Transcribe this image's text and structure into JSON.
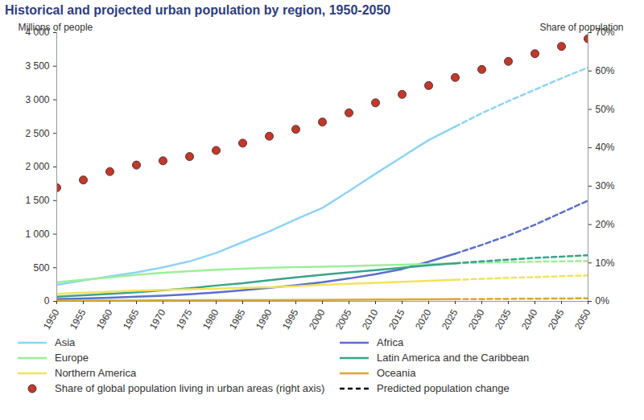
{
  "chart_data": {
    "type": "line",
    "title": "Historical and projected urban population by region, 1950-2050",
    "y_label": "Millions of people",
    "y2_label": "Share of population",
    "x": [
      1950,
      1955,
      1960,
      1965,
      1970,
      1975,
      1980,
      1985,
      1990,
      1995,
      2000,
      2005,
      2010,
      2015,
      2020,
      2025,
      2030,
      2035,
      2040,
      2045,
      2050
    ],
    "xlim": [
      1950,
      2050
    ],
    "xticks": [
      1950,
      1955,
      1960,
      1965,
      1970,
      1975,
      1980,
      1985,
      1990,
      1995,
      2000,
      2005,
      2010,
      2015,
      2020,
      2025,
      2030,
      2035,
      2040,
      2045,
      2050
    ],
    "ylim": [
      0,
      4000
    ],
    "yticks": [
      0,
      500,
      {
        "value": 1000,
        "label": "1 000"
      },
      {
        "value": 1500,
        "label": "1 500"
      },
      {
        "value": 2000,
        "label": "2 000"
      },
      {
        "value": 2500,
        "label": "2 500"
      },
      {
        "value": 3000,
        "label": "3 000"
      },
      {
        "value": 3500,
        "label": "3 500"
      },
      {
        "value": 4000,
        "label": "4 000"
      }
    ],
    "y2lim": [
      0,
      70
    ],
    "y2ticks": [
      {
        "value": 0,
        "label": "0%"
      },
      {
        "value": 10,
        "label": "10%"
      },
      {
        "value": 20,
        "label": "20%"
      },
      {
        "value": 30,
        "label": "30%"
      },
      {
        "value": 40,
        "label": "40%"
      },
      {
        "value": 50,
        "label": "50%"
      },
      {
        "value": 60,
        "label": "60%"
      },
      {
        "value": 70,
        "label": "70%"
      }
    ],
    "grid": false,
    "legend": "bottom",
    "series": [
      {
        "name": "Asia",
        "color": "#8fd3f5",
        "line_style": "solid",
        "values": [
          246,
          310,
          370,
          430,
          505,
          595,
          720,
          880,
          1040,
          1220,
          1390,
          1640,
          1900,
          2150,
          2400,
          2600,
          null,
          null,
          null,
          null,
          null
        ],
        "projected_values": [
          null,
          null,
          null,
          null,
          null,
          null,
          null,
          null,
          null,
          null,
          null,
          null,
          null,
          null,
          null,
          2600,
          2800,
          2980,
          3150,
          3320,
          3480
        ]
      },
      {
        "name": "Africa",
        "color": "#5b6fc9",
        "line_style": "solid",
        "values": [
          33,
          42,
          53,
          68,
          85,
          106,
          132,
          165,
          200,
          240,
          285,
          340,
          405,
          480,
          590,
          710,
          null,
          null,
          null,
          null,
          null
        ],
        "projected_values": [
          null,
          null,
          null,
          null,
          null,
          null,
          null,
          null,
          null,
          null,
          null,
          null,
          null,
          null,
          null,
          710,
          840,
          980,
          1140,
          1320,
          1500
        ]
      },
      {
        "name": "Europe",
        "color": "#99f09a",
        "line_style": "solid",
        "values": [
          285,
          320,
          355,
          395,
          425,
          450,
          470,
          485,
          500,
          510,
          515,
          525,
          535,
          545,
          555,
          565,
          null,
          null,
          null,
          null,
          null
        ],
        "projected_values": [
          null,
          null,
          null,
          null,
          null,
          null,
          null,
          null,
          null,
          null,
          null,
          null,
          null,
          null,
          null,
          565,
          575,
          585,
          590,
          595,
          600
        ]
      },
      {
        "name": "Latin America and the Caribbean",
        "color": "#3aa38a",
        "line_style": "solid",
        "values": [
          70,
          90,
          110,
          135,
          165,
          195,
          235,
          270,
          315,
          355,
          395,
          430,
          465,
          500,
          535,
          565,
          null,
          null,
          null,
          null,
          null
        ],
        "projected_values": [
          null,
          null,
          null,
          null,
          null,
          null,
          null,
          null,
          null,
          null,
          null,
          null,
          null,
          null,
          null,
          565,
          595,
          620,
          645,
          665,
          685
        ]
      },
      {
        "name": "Northern America",
        "color": "#f2e35a",
        "line_style": "solid",
        "values": [
          110,
          130,
          145,
          160,
          170,
          180,
          190,
          200,
          210,
          225,
          245,
          260,
          275,
          290,
          305,
          320,
          null,
          null,
          null,
          null,
          null
        ],
        "projected_values": [
          null,
          null,
          null,
          null,
          null,
          null,
          null,
          null,
          null,
          null,
          null,
          null,
          null,
          null,
          null,
          320,
          335,
          350,
          360,
          375,
          385
        ]
      },
      {
        "name": "Oceania",
        "color": "#d9a82e",
        "line_style": "solid",
        "values": [
          8,
          10,
          11,
          13,
          15,
          16,
          17,
          18,
          19,
          20,
          22,
          24,
          26,
          28,
          30,
          32,
          null,
          null,
          null,
          null,
          null
        ],
        "projected_values": [
          null,
          null,
          null,
          null,
          null,
          null,
          null,
          null,
          null,
          null,
          null,
          null,
          null,
          null,
          null,
          32,
          34,
          37,
          39,
          42,
          45
        ]
      },
      {
        "name": "Share of global population living in urban areas (right axis)",
        "type": "scatter",
        "marker": "circle",
        "axis": "y2",
        "color": "#c0392b",
        "values": [
          29.6,
          31.6,
          33.8,
          35.5,
          36.6,
          37.7,
          39.3,
          41.2,
          43.0,
          44.8,
          46.7,
          49.1,
          51.7,
          53.9,
          56.2,
          58.3,
          60.4,
          62.5,
          64.5,
          66.4,
          68.4
        ]
      },
      {
        "name": "Predicted population change",
        "color": "#000000",
        "line_style": "dashed",
        "values": [
          null,
          null,
          null,
          null,
          null,
          null,
          null,
          null,
          null,
          null,
          null,
          null,
          null,
          null,
          null,
          null,
          null,
          null,
          null,
          null,
          null
        ]
      }
    ]
  }
}
